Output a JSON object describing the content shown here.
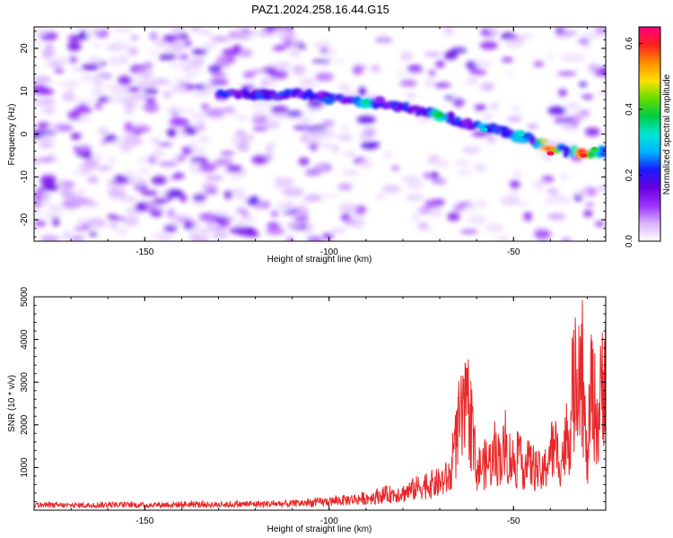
{
  "figure": {
    "title": "PAZ1.2024.258.16.44.G15"
  },
  "colors": {
    "line": "#e8282a",
    "axis": "#000000",
    "colormap": [
      "#ffffff",
      "#d9b3ff",
      "#9b30ff",
      "#6a00e0",
      "#1a1aff",
      "#00b4ff",
      "#00e5d0",
      "#00cc44",
      "#66dd00",
      "#ffe000",
      "#ff8c00",
      "#ff2020",
      "#ff0080"
    ]
  },
  "chart_data": [
    {
      "type": "heatmap",
      "xlabel": "Height of straight line (km)",
      "ylabel": "Frequency (Hz)",
      "xlim": [
        -180,
        -25
      ],
      "ylim": [
        -25,
        25
      ],
      "xticks": [
        -150,
        -100,
        -50
      ],
      "yticks": [
        -20,
        -10,
        0,
        10,
        20
      ],
      "colorbar": {
        "label": "Normalized spectral amplitude",
        "range": [
          0,
          0.65
        ],
        "ticks": [
          "0.0",
          "0.2",
          "0.4",
          "0.6"
        ]
      },
      "ridge": {
        "x": [
          -130,
          -120,
          -110,
          -100,
          -90,
          -80,
          -70,
          -60,
          -50,
          -40,
          -30,
          -25
        ],
        "y": [
          10,
          9,
          9.5,
          8.5,
          7.5,
          6.5,
          4.5,
          2,
          0,
          -3,
          -5,
          -4
        ]
      },
      "peaks": [
        {
          "x": -90,
          "y": 7.5,
          "amp": 0.35
        },
        {
          "x": -70,
          "y": 4.5,
          "amp": 0.38
        },
        {
          "x": -58,
          "y": 1,
          "amp": 0.3
        },
        {
          "x": -48,
          "y": 0,
          "amp": 0.33
        },
        {
          "x": -40,
          "y": -4.5,
          "amp": 0.62
        },
        {
          "x": -31,
          "y": -5,
          "amp": 0.6
        },
        {
          "x": -28,
          "y": -3.5,
          "amp": 0.4
        }
      ],
      "grid": false
    },
    {
      "type": "line",
      "xlabel": "Height of straight line (km)",
      "ylabel": "SNR (10 * v/v)",
      "xlim": [
        -180,
        -25
      ],
      "ylim": [
        0,
        5000
      ],
      "xticks": [
        -150,
        -100,
        -50
      ],
      "yticks": [
        1000,
        2000,
        3000,
        4000,
        5000
      ],
      "grid": false,
      "series": [
        {
          "x": [
            -180,
            -170,
            -160,
            -150,
            -140,
            -130,
            -120,
            -110,
            -100,
            -95,
            -90,
            -85,
            -80,
            -75,
            -70,
            -67,
            -65,
            -62,
            -60,
            -55,
            -52,
            -50,
            -45,
            -42,
            -40,
            -37,
            -35,
            -32,
            -30,
            -29,
            -27,
            -25
          ],
          "y": [
            150,
            140,
            160,
            150,
            170,
            160,
            180,
            190,
            250,
            300,
            350,
            450,
            500,
            700,
            800,
            1000,
            2400,
            3000,
            1200,
            1500,
            1700,
            1400,
            1300,
            1000,
            1800,
            1500,
            2200,
            5000,
            1200,
            3600,
            2500,
            4800
          ]
        }
      ]
    }
  ]
}
